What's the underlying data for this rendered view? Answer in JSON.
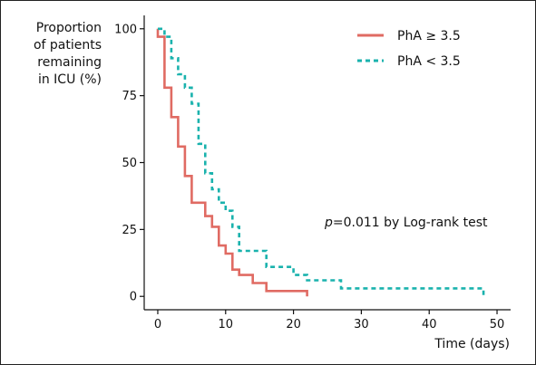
{
  "chart_data": {
    "type": "line",
    "subtype": "kaplan-meier step curve",
    "ylabel_lines": [
      "Proportion",
      "of patients",
      "remaining",
      "in ICU (%)"
    ],
    "xlabel": "Time (days)",
    "xlim": [
      -2,
      52
    ],
    "ylim": [
      -5,
      105
    ],
    "xticks": [
      0,
      10,
      20,
      30,
      40,
      50
    ],
    "yticks": [
      0,
      25,
      50,
      75,
      100
    ],
    "grid": false,
    "legend_position": "top-right",
    "annotation": {
      "p": "p",
      "rest": "=0.011 by Log-rank test"
    },
    "series": [
      {
        "name": "PhA ≥ 3.5",
        "color": "#e06b63",
        "dash": "solid",
        "x": [
          0,
          0,
          1,
          1,
          2,
          2,
          3,
          3,
          4,
          4,
          5,
          5,
          7,
          7,
          8,
          8,
          9,
          9,
          10,
          10,
          11,
          11,
          12,
          12,
          14,
          14,
          16,
          16,
          22,
          22
        ],
        "y": [
          100,
          97,
          97,
          78,
          78,
          67,
          67,
          56,
          56,
          45,
          45,
          35,
          35,
          30,
          30,
          26,
          26,
          19,
          19,
          16,
          16,
          10,
          10,
          8,
          8,
          5,
          5,
          2,
          2,
          0
        ]
      },
      {
        "name": "PhA < 3.5",
        "color": "#1ab2ad",
        "dash": "dashed",
        "x": [
          0,
          1,
          1,
          2,
          2,
          3,
          3,
          4,
          4,
          5,
          5,
          6,
          6,
          7,
          7,
          8,
          8,
          9,
          9,
          10,
          10,
          11,
          11,
          12,
          12,
          16,
          16,
          20,
          20,
          22,
          22,
          27,
          27,
          48,
          48
        ],
        "y": [
          100,
          100,
          97,
          97,
          89,
          89,
          83,
          83,
          78,
          78,
          72,
          72,
          57,
          57,
          46,
          46,
          40,
          40,
          35,
          35,
          32,
          32,
          26,
          26,
          17,
          17,
          11,
          11,
          8,
          8,
          6,
          6,
          3,
          3,
          0
        ]
      }
    ]
  }
}
